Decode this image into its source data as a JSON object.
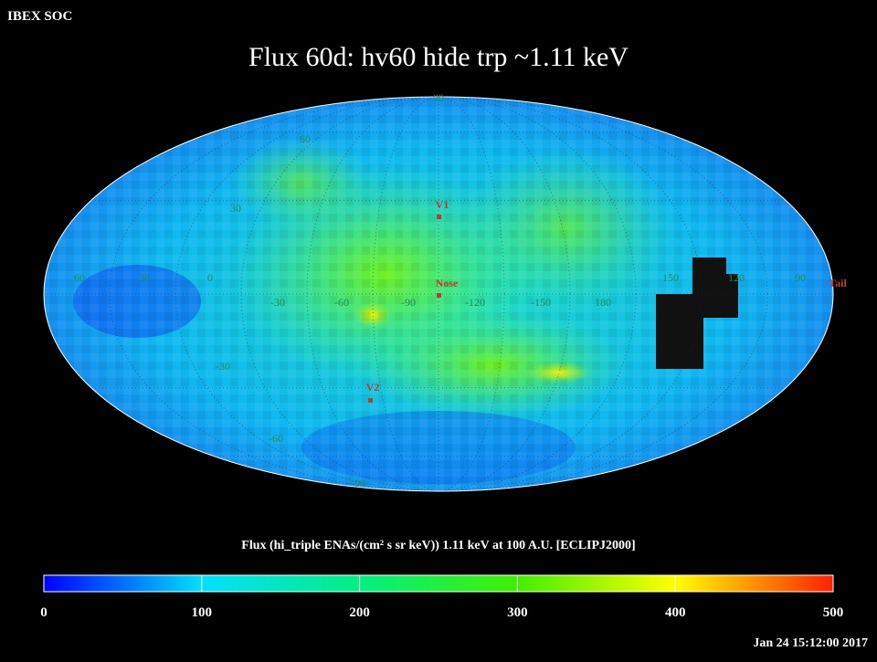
{
  "header": {
    "org": "IBEX SOC",
    "title": "Flux   60d: hv60 hide trp ~1.11 keV"
  },
  "markers": {
    "v1": "V1",
    "nose": "Nose",
    "v2": "V2",
    "tail": "Tail"
  },
  "longitude_labels": [
    "60",
    "30",
    "0",
    "-30",
    "-60",
    "-90",
    "-120",
    "-150",
    "180",
    "150",
    "120",
    "90"
  ],
  "latitude_labels": [
    "90",
    "60",
    "30",
    "-30",
    "-60",
    "-90"
  ],
  "colorbar": {
    "caption": "Flux (hi_triple ENAs/(cm² s sr keV))  1.11 keV at 100 A.U. [ECLIPJ2000]",
    "lim": [
      0,
      500
    ],
    "ticks": [
      0,
      100,
      200,
      300,
      400,
      500
    ]
  },
  "timestamp": "Jan 24 15:12:00 2017"
}
